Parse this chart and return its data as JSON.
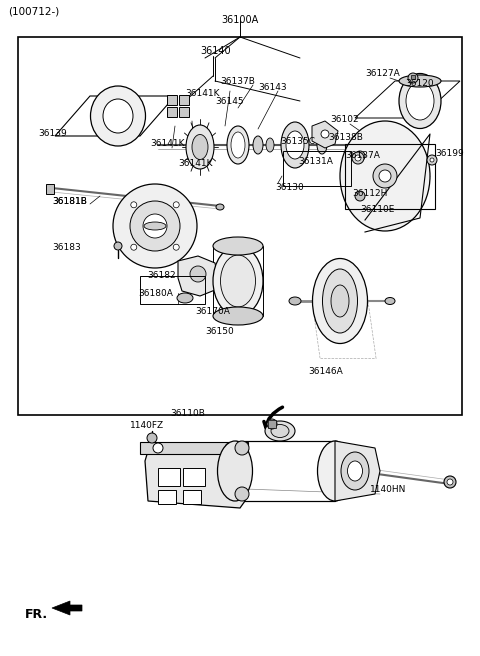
{
  "bg_color": "#ffffff",
  "fig_width": 4.8,
  "fig_height": 6.56,
  "dpi": 100,
  "top_note": "(100712-)",
  "main_title": "36100A",
  "fr_label": "FR."
}
